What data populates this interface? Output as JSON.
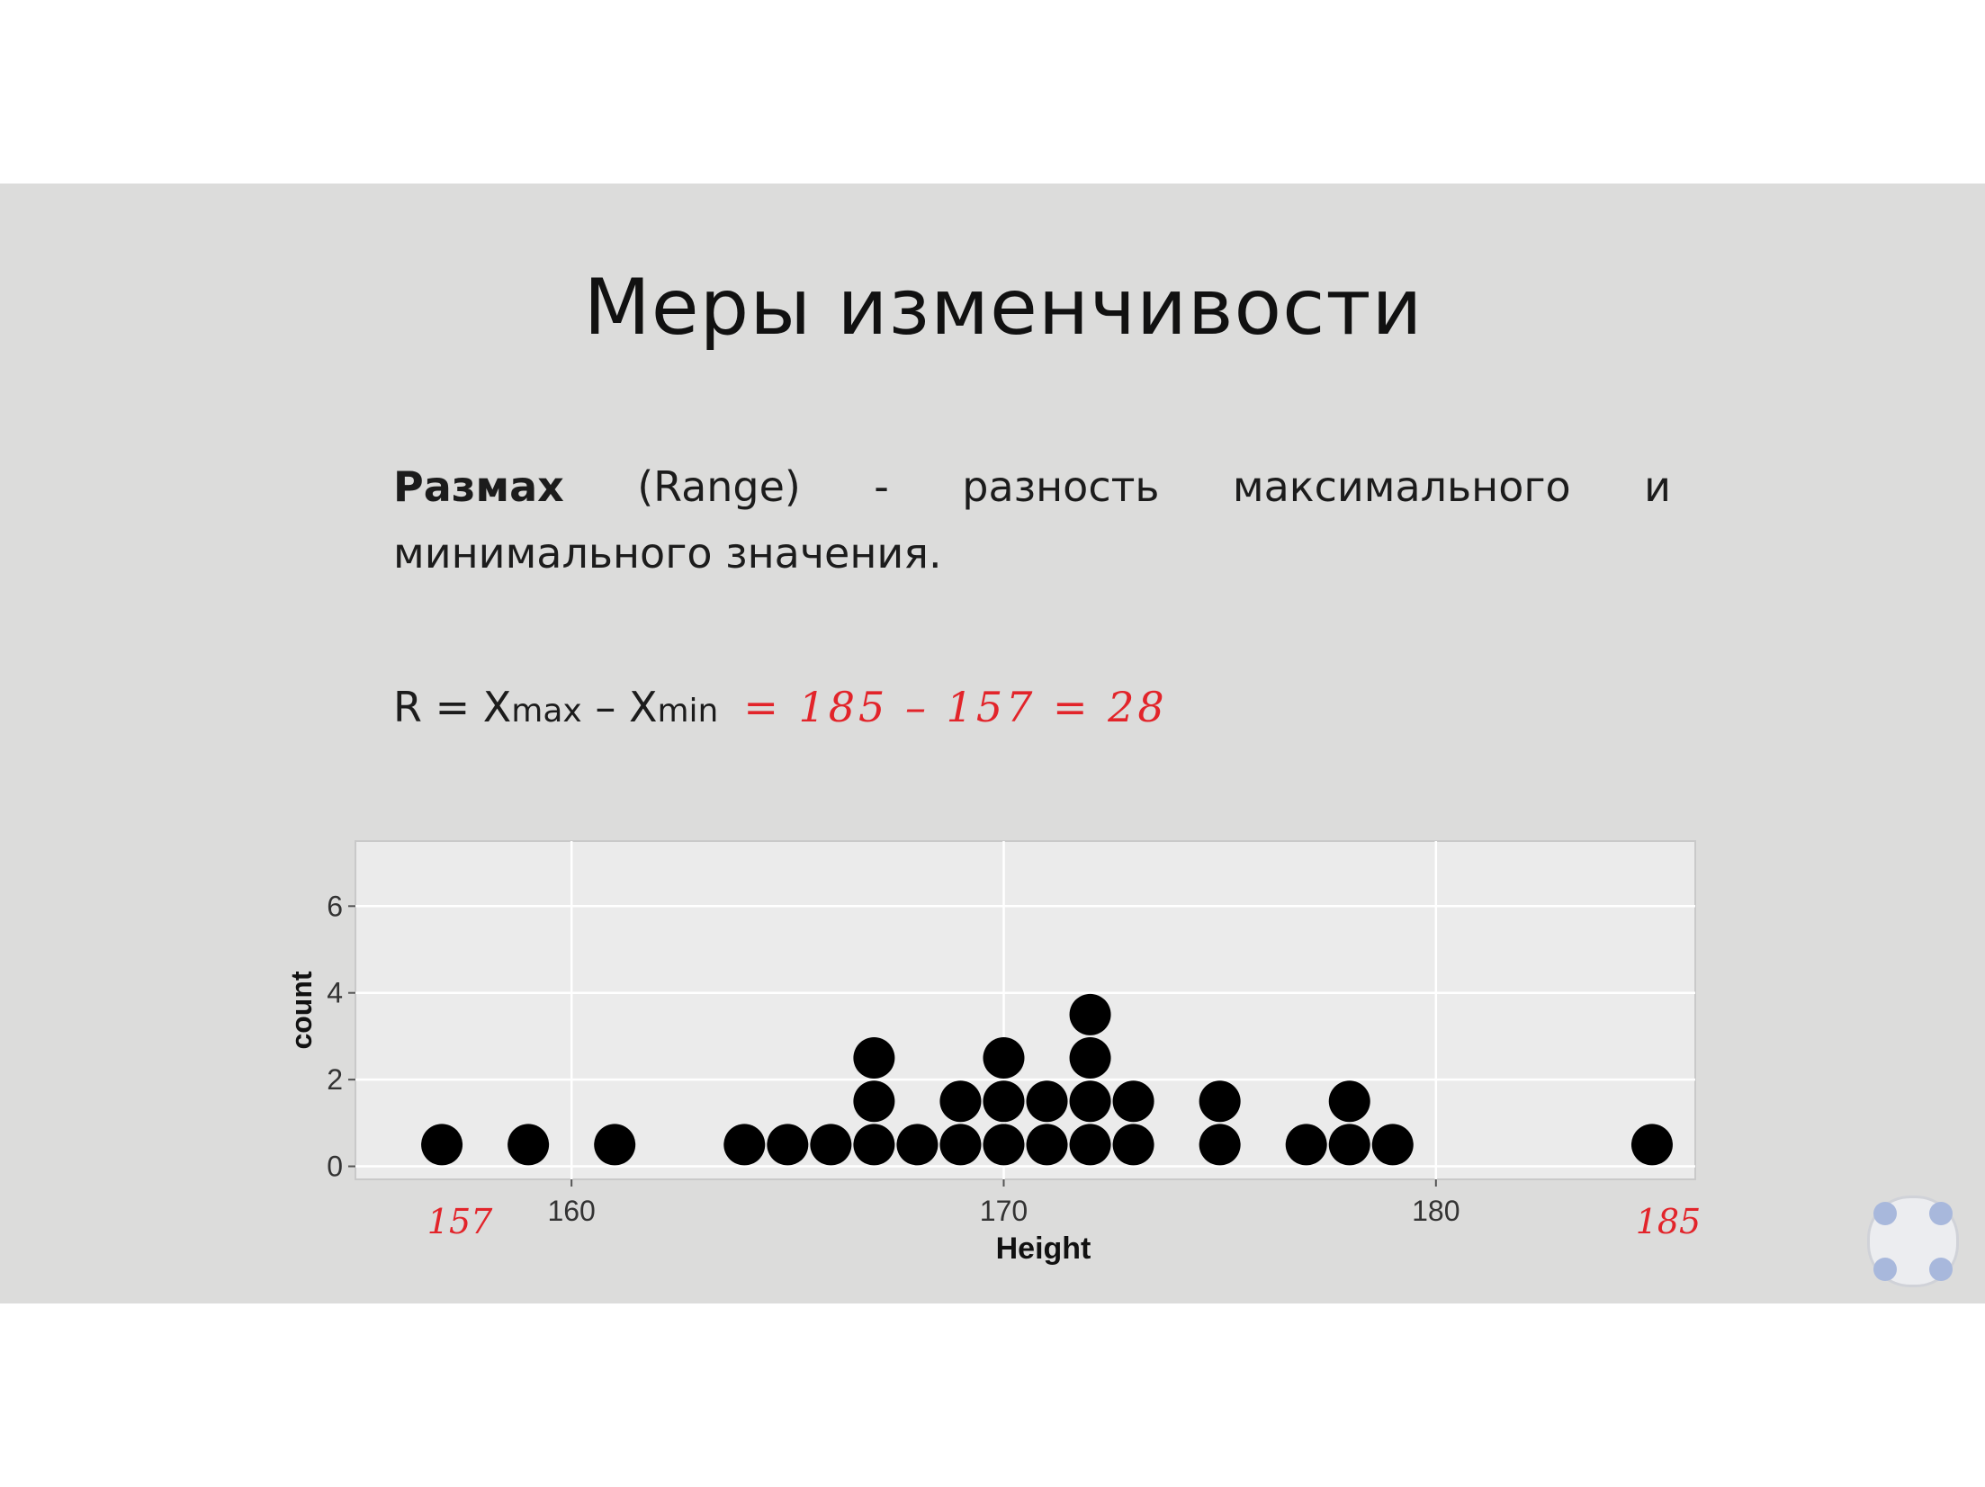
{
  "slide": {
    "title": "Меры изменчивости",
    "definition_term": "Размах",
    "definition_rest": " (Range)  - разность максимального и минимального значения.",
    "formula": {
      "lhs": "R = X",
      "max_sub": "max",
      "minus": " – X",
      "min_sub": "min",
      "handwritten": "= 185 – 157 = 28"
    },
    "annotations": {
      "min_label": "157",
      "max_label": "185"
    }
  },
  "chart_data": {
    "type": "scatter",
    "subtype": "dotplot",
    "xlabel": "Height",
    "ylabel": "count",
    "x_ticks": [
      160,
      170,
      180
    ],
    "y_ticks": [
      0,
      2,
      4,
      6
    ],
    "xlim": [
      155,
      186
    ],
    "ylim": [
      -0.3,
      7.5
    ],
    "grid": true,
    "colors": {
      "dots": "#000000",
      "panel": "#ebebeb",
      "grid": "#ffffff",
      "annotation": "#e2242a"
    },
    "x": [
      157,
      159,
      161,
      164,
      165,
      166,
      167,
      168,
      169,
      170,
      171,
      172,
      173,
      175,
      177,
      178,
      179,
      185
    ],
    "counts": [
      1,
      1,
      1,
      1,
      1,
      1,
      3,
      1,
      2,
      3,
      2,
      4,
      2,
      2,
      1,
      2,
      1,
      1
    ]
  }
}
